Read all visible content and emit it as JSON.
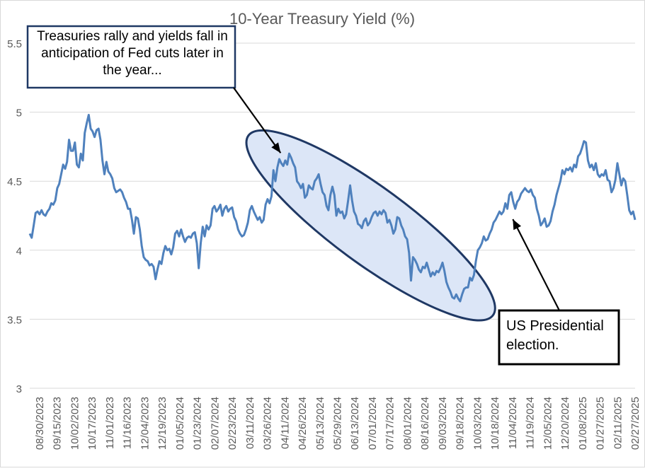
{
  "chart_data": {
    "type": "line",
    "title": "10-Year Treasury Yield (%)",
    "xlabel": "",
    "ylabel": "",
    "ylim": [
      3,
      5.5
    ],
    "yticks": [
      "3",
      "3.5",
      "4",
      "4.5",
      "5",
      "5.5"
    ],
    "xticks": [
      "08/30/2023",
      "09/15/2023",
      "10/02/2023",
      "10/17/2023",
      "11/01/2023",
      "11/16/2023",
      "12/04/2023",
      "12/19/2023",
      "01/05/2024",
      "01/23/2024",
      "02/07/2024",
      "02/23/2024",
      "03/11/2024",
      "03/26/2024",
      "04/11/2024",
      "04/26/2024",
      "05/13/2024",
      "05/29/2024",
      "06/13/2024",
      "07/01/2024",
      "07/17/2024",
      "08/01/2024",
      "08/16/2024",
      "09/03/2024",
      "09/18/2024",
      "10/03/2024",
      "10/18/2024",
      "11/04/2024",
      "11/19/2024",
      "12/05/2024",
      "12/20/2024",
      "01/08/2025",
      "01/27/2025",
      "02/11/2025",
      "02/27/2025"
    ],
    "grid": true,
    "line_color": "#4f81bd",
    "highlight_fill": "#dce6f7",
    "series": [
      {
        "values": [
          [
            0,
            4.12
          ],
          [
            1,
            4.09
          ],
          [
            2,
            4.18
          ],
          [
            3,
            4.27
          ],
          [
            4,
            4.28
          ],
          [
            5,
            4.26
          ],
          [
            6,
            4.29
          ],
          [
            7,
            4.26
          ],
          [
            8,
            4.25
          ],
          [
            9,
            4.28
          ],
          [
            10,
            4.3
          ],
          [
            11,
            4.34
          ],
          [
            12,
            4.33
          ],
          [
            13,
            4.36
          ],
          [
            14,
            4.45
          ],
          [
            15,
            4.48
          ],
          [
            16,
            4.55
          ],
          [
            17,
            4.62
          ],
          [
            18,
            4.59
          ],
          [
            19,
            4.64
          ],
          [
            20,
            4.8
          ],
          [
            21,
            4.72
          ],
          [
            22,
            4.72
          ],
          [
            23,
            4.78
          ],
          [
            24,
            4.62
          ],
          [
            25,
            4.6
          ],
          [
            26,
            4.7
          ],
          [
            27,
            4.65
          ],
          [
            28,
            4.85
          ],
          [
            29,
            4.92
          ],
          [
            30,
            4.98
          ],
          [
            31,
            4.88
          ],
          [
            32,
            4.86
          ],
          [
            33,
            4.82
          ],
          [
            34,
            4.87
          ],
          [
            35,
            4.88
          ],
          [
            36,
            4.8
          ],
          [
            37,
            4.65
          ],
          [
            38,
            4.55
          ],
          [
            39,
            4.64
          ],
          [
            40,
            4.57
          ],
          [
            41,
            4.55
          ],
          [
            42,
            4.52
          ],
          [
            43,
            4.45
          ],
          [
            44,
            4.42
          ],
          [
            45,
            4.43
          ],
          [
            46,
            4.44
          ],
          [
            47,
            4.42
          ],
          [
            48,
            4.38
          ],
          [
            49,
            4.35
          ],
          [
            50,
            4.3
          ],
          [
            51,
            4.3
          ],
          [
            52,
            4.22
          ],
          [
            53,
            4.12
          ],
          [
            54,
            4.24
          ],
          [
            55,
            4.23
          ],
          [
            56,
            4.15
          ],
          [
            57,
            4.03
          ],
          [
            58,
            3.95
          ],
          [
            59,
            3.93
          ],
          [
            60,
            3.92
          ],
          [
            61,
            3.89
          ],
          [
            62,
            3.9
          ],
          [
            63,
            3.88
          ],
          [
            64,
            3.79
          ],
          [
            65,
            3.86
          ],
          [
            66,
            3.92
          ],
          [
            67,
            3.9
          ],
          [
            68,
            3.98
          ],
          [
            69,
            4.03
          ],
          [
            70,
            4.0
          ],
          [
            71,
            4.01
          ],
          [
            72,
            3.97
          ],
          [
            73,
            4.02
          ],
          [
            74,
            4.12
          ],
          [
            75,
            4.14
          ],
          [
            76,
            4.1
          ],
          [
            77,
            4.15
          ],
          [
            78,
            4.1
          ],
          [
            79,
            4.06
          ],
          [
            80,
            4.09
          ],
          [
            81,
            4.1
          ],
          [
            82,
            4.09
          ],
          [
            83,
            4.12
          ],
          [
            84,
            4.13
          ],
          [
            85,
            4.05
          ],
          [
            86,
            3.87
          ],
          [
            87,
            4.05
          ],
          [
            88,
            4.17
          ],
          [
            89,
            4.1
          ],
          [
            90,
            4.18
          ],
          [
            91,
            4.15
          ],
          [
            92,
            4.18
          ],
          [
            93,
            4.3
          ],
          [
            94,
            4.32
          ],
          [
            95,
            4.28
          ],
          [
            96,
            4.3
          ],
          [
            97,
            4.33
          ],
          [
            98,
            4.25
          ],
          [
            99,
            4.3
          ],
          [
            100,
            4.32
          ],
          [
            101,
            4.28
          ],
          [
            102,
            4.3
          ],
          [
            103,
            4.31
          ],
          [
            104,
            4.24
          ],
          [
            105,
            4.21
          ],
          [
            106,
            4.15
          ],
          [
            107,
            4.12
          ],
          [
            108,
            4.1
          ],
          [
            109,
            4.11
          ],
          [
            110,
            4.15
          ],
          [
            111,
            4.2
          ],
          [
            112,
            4.29
          ],
          [
            113,
            4.32
          ],
          [
            114,
            4.28
          ],
          [
            115,
            4.25
          ],
          [
            116,
            4.22
          ],
          [
            117,
            4.24
          ],
          [
            118,
            4.2
          ],
          [
            119,
            4.22
          ],
          [
            120,
            4.33
          ],
          [
            121,
            4.37
          ],
          [
            122,
            4.34
          ],
          [
            123,
            4.39
          ],
          [
            124,
            4.58
          ],
          [
            125,
            4.5
          ],
          [
            126,
            4.6
          ],
          [
            127,
            4.66
          ],
          [
            128,
            4.63
          ],
          [
            129,
            4.61
          ],
          [
            130,
            4.65
          ],
          [
            131,
            4.62
          ],
          [
            132,
            4.7
          ],
          [
            133,
            4.67
          ],
          [
            134,
            4.63
          ],
          [
            135,
            4.6
          ],
          [
            136,
            4.5
          ],
          [
            137,
            4.48
          ],
          [
            138,
            4.45
          ],
          [
            139,
            4.48
          ],
          [
            140,
            4.38
          ],
          [
            141,
            4.4
          ],
          [
            142,
            4.47
          ],
          [
            143,
            4.45
          ],
          [
            144,
            4.44
          ],
          [
            145,
            4.5
          ],
          [
            146,
            4.52
          ],
          [
            147,
            4.55
          ],
          [
            148,
            4.48
          ],
          [
            149,
            4.42
          ],
          [
            150,
            4.4
          ],
          [
            151,
            4.32
          ],
          [
            152,
            4.29
          ],
          [
            153,
            4.4
          ],
          [
            154,
            4.46
          ],
          [
            155,
            4.4
          ],
          [
            156,
            4.25
          ],
          [
            157,
            4.3
          ],
          [
            158,
            4.27
          ],
          [
            159,
            4.28
          ],
          [
            160,
            4.23
          ],
          [
            161,
            4.26
          ],
          [
            162,
            4.36
          ],
          [
            163,
            4.47
          ],
          [
            164,
            4.36
          ],
          [
            165,
            4.28
          ],
          [
            166,
            4.25
          ],
          [
            167,
            4.19
          ],
          [
            168,
            4.18
          ],
          [
            169,
            4.16
          ],
          [
            170,
            4.21
          ],
          [
            171,
            4.23
          ],
          [
            172,
            4.18
          ],
          [
            173,
            4.2
          ],
          [
            174,
            4.24
          ],
          [
            175,
            4.27
          ],
          [
            176,
            4.28
          ],
          [
            177,
            4.25
          ],
          [
            178,
            4.28
          ],
          [
            179,
            4.26
          ],
          [
            180,
            4.29
          ],
          [
            181,
            4.27
          ],
          [
            182,
            4.2
          ],
          [
            183,
            4.22
          ],
          [
            184,
            4.18
          ],
          [
            185,
            4.12
          ],
          [
            186,
            4.15
          ],
          [
            187,
            4.24
          ],
          [
            188,
            4.23
          ],
          [
            189,
            4.18
          ],
          [
            190,
            4.15
          ],
          [
            191,
            4.1
          ],
          [
            192,
            4.08
          ],
          [
            193,
            3.98
          ],
          [
            194,
            3.78
          ],
          [
            195,
            3.95
          ],
          [
            196,
            3.93
          ],
          [
            197,
            3.9
          ],
          [
            198,
            3.86
          ],
          [
            199,
            3.84
          ],
          [
            200,
            3.88
          ],
          [
            201,
            3.87
          ],
          [
            202,
            3.91
          ],
          [
            203,
            3.86
          ],
          [
            204,
            3.81
          ],
          [
            205,
            3.84
          ],
          [
            206,
            3.82
          ],
          [
            207,
            3.85
          ],
          [
            208,
            3.84
          ],
          [
            209,
            3.87
          ],
          [
            210,
            3.91
          ],
          [
            211,
            3.85
          ],
          [
            212,
            3.77
          ],
          [
            213,
            3.73
          ],
          [
            214,
            3.7
          ],
          [
            215,
            3.66
          ],
          [
            216,
            3.65
          ],
          [
            217,
            3.68
          ],
          [
            218,
            3.65
          ],
          [
            219,
            3.63
          ],
          [
            220,
            3.68
          ],
          [
            221,
            3.72
          ],
          [
            222,
            3.73
          ],
          [
            223,
            3.73
          ],
          [
            224,
            3.8
          ],
          [
            225,
            3.78
          ],
          [
            226,
            3.82
          ],
          [
            227,
            3.92
          ],
          [
            228,
            4.0
          ],
          [
            229,
            4.02
          ],
          [
            230,
            4.05
          ],
          [
            231,
            4.1
          ],
          [
            232,
            4.07
          ],
          [
            233,
            4.08
          ],
          [
            234,
            4.12
          ],
          [
            235,
            4.15
          ],
          [
            236,
            4.2
          ],
          [
            237,
            4.22
          ],
          [
            238,
            4.25
          ],
          [
            239,
            4.28
          ],
          [
            240,
            4.26
          ],
          [
            241,
            4.28
          ],
          [
            242,
            4.34
          ],
          [
            243,
            4.3
          ],
          [
            244,
            4.4
          ],
          [
            245,
            4.42
          ],
          [
            246,
            4.35
          ],
          [
            247,
            4.3
          ],
          [
            248,
            4.35
          ],
          [
            249,
            4.37
          ],
          [
            250,
            4.41
          ],
          [
            251,
            4.43
          ],
          [
            252,
            4.45
          ],
          [
            253,
            4.43
          ],
          [
            254,
            4.42
          ],
          [
            255,
            4.44
          ],
          [
            256,
            4.4
          ],
          [
            257,
            4.38
          ],
          [
            258,
            4.3
          ],
          [
            259,
            4.25
          ],
          [
            260,
            4.18
          ],
          [
            261,
            4.2
          ],
          [
            262,
            4.23
          ],
          [
            263,
            4.17
          ],
          [
            264,
            4.18
          ],
          [
            265,
            4.21
          ],
          [
            266,
            4.28
          ],
          [
            267,
            4.33
          ],
          [
            268,
            4.4
          ],
          [
            269,
            4.45
          ],
          [
            270,
            4.5
          ],
          [
            271,
            4.58
          ],
          [
            272,
            4.55
          ],
          [
            273,
            4.59
          ],
          [
            274,
            4.58
          ],
          [
            275,
            4.6
          ],
          [
            276,
            4.57
          ],
          [
            277,
            4.62
          ],
          [
            278,
            4.6
          ],
          [
            279,
            4.68
          ],
          [
            280,
            4.7
          ],
          [
            281,
            4.74
          ],
          [
            282,
            4.79
          ],
          [
            283,
            4.78
          ],
          [
            284,
            4.65
          ],
          [
            285,
            4.6
          ],
          [
            286,
            4.62
          ],
          [
            287,
            4.58
          ],
          [
            288,
            4.63
          ],
          [
            289,
            4.55
          ],
          [
            290,
            4.53
          ],
          [
            291,
            4.55
          ],
          [
            292,
            4.54
          ],
          [
            293,
            4.58
          ],
          [
            294,
            4.51
          ],
          [
            295,
            4.5
          ],
          [
            296,
            4.42
          ],
          [
            297,
            4.45
          ],
          [
            298,
            4.51
          ],
          [
            299,
            4.63
          ],
          [
            300,
            4.55
          ],
          [
            301,
            4.47
          ],
          [
            302,
            4.52
          ],
          [
            303,
            4.5
          ],
          [
            304,
            4.4
          ],
          [
            305,
            4.29
          ],
          [
            306,
            4.26
          ],
          [
            307,
            4.28
          ],
          [
            308,
            4.22
          ]
        ]
      }
    ],
    "annotations": [
      {
        "text_lines": [
          "Treasuries  rally and yields fall in",
          "anticipation of Fed cuts later in",
          "the year..."
        ],
        "arrow_to": [
          128,
          4.72
        ]
      },
      {
        "text_lines": [
          "US Presidential",
          "election."
        ],
        "arrow_to": [
          244,
          4.25
        ]
      }
    ],
    "highlight_range": {
      "x": [
        120,
        227
      ],
      "y": [
        3.62,
        4.74
      ]
    }
  }
}
